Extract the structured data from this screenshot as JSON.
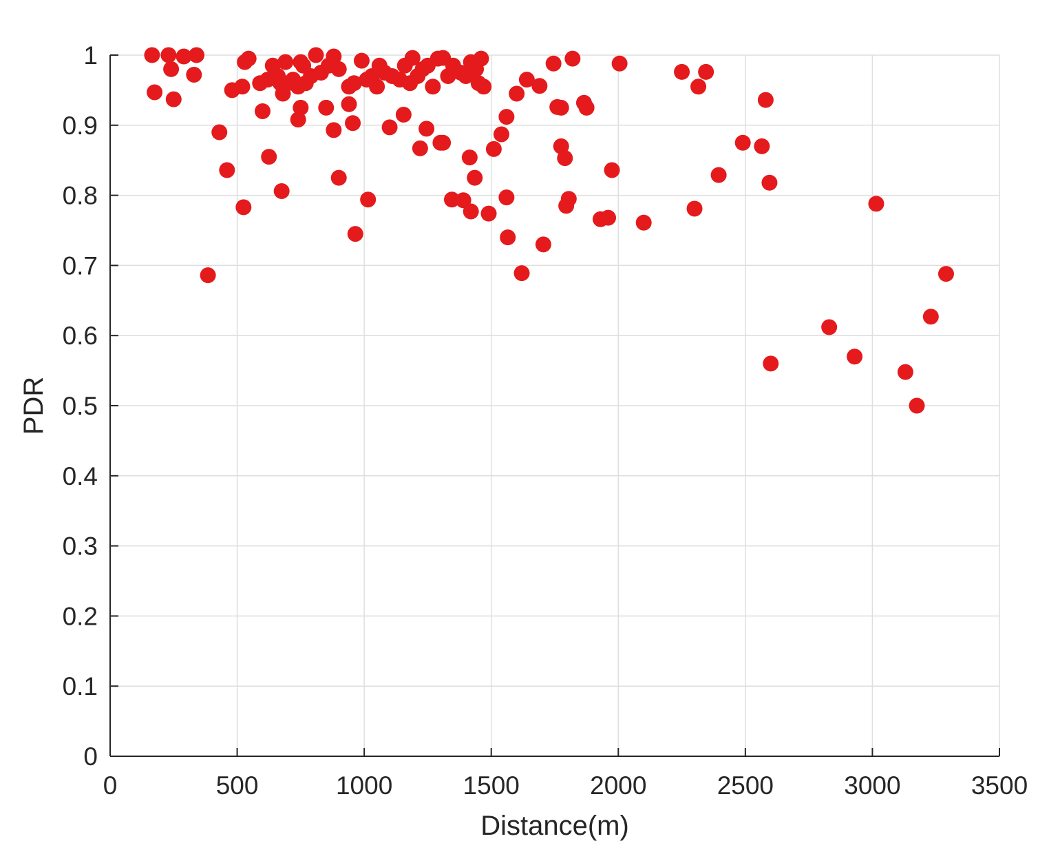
{
  "chart_data": {
    "type": "scatter",
    "title": "",
    "xlabel": "Distance(m)",
    "ylabel": "PDR",
    "xlim": [
      0,
      3500
    ],
    "ylim": [
      0,
      1
    ],
    "xticks": [
      0,
      500,
      1000,
      1500,
      2000,
      2500,
      3000,
      3500
    ],
    "xtick_labels": [
      "0",
      "500",
      "1000",
      "1500",
      "2000",
      "2500",
      "3000",
      "3500"
    ],
    "yticks": [
      0,
      0.1,
      0.2,
      0.3,
      0.4,
      0.5,
      0.6,
      0.7,
      0.8,
      0.9,
      1
    ],
    "ytick_labels": [
      "0",
      "0.1",
      "0.2",
      "0.3",
      "0.4",
      "0.5",
      "0.6",
      "0.7",
      "0.8",
      "0.9",
      "1"
    ],
    "grid": true,
    "legend": false,
    "marker_color": "#e41a1c",
    "points": [
      [
        165,
        1.0
      ],
      [
        230,
        1.0
      ],
      [
        290,
        0.998
      ],
      [
        340,
        1.0
      ],
      [
        240,
        0.98
      ],
      [
        330,
        0.972
      ],
      [
        175,
        0.947
      ],
      [
        250,
        0.937
      ],
      [
        480,
        0.95
      ],
      [
        520,
        0.955
      ],
      [
        530,
        0.99
      ],
      [
        545,
        0.995
      ],
      [
        590,
        0.96
      ],
      [
        600,
        0.92
      ],
      [
        620,
        0.965
      ],
      [
        640,
        0.985
      ],
      [
        660,
        0.97
      ],
      [
        670,
        0.96
      ],
      [
        680,
        0.945
      ],
      [
        690,
        0.99
      ],
      [
        700,
        0.96
      ],
      [
        720,
        0.965
      ],
      [
        740,
        0.955
      ],
      [
        750,
        0.99
      ],
      [
        760,
        0.985
      ],
      [
        770,
        0.96
      ],
      [
        790,
        0.97
      ],
      [
        810,
        1.0
      ],
      [
        830,
        0.975
      ],
      [
        860,
        0.985
      ],
      [
        880,
        0.998
      ],
      [
        900,
        0.98
      ],
      [
        940,
        0.955
      ],
      [
        960,
        0.96
      ],
      [
        990,
        0.992
      ],
      [
        1010,
        0.965
      ],
      [
        1030,
        0.97
      ],
      [
        1050,
        0.955
      ],
      [
        1060,
        0.985
      ],
      [
        1080,
        0.975
      ],
      [
        1110,
        0.97
      ],
      [
        1140,
        0.965
      ],
      [
        1160,
        0.985
      ],
      [
        1180,
        0.96
      ],
      [
        1190,
        0.996
      ],
      [
        1210,
        0.97
      ],
      [
        1230,
        0.98
      ],
      [
        1250,
        0.985
      ],
      [
        1270,
        0.955
      ],
      [
        1290,
        0.995
      ],
      [
        1310,
        0.996
      ],
      [
        1330,
        0.97
      ],
      [
        1350,
        0.985
      ],
      [
        1380,
        0.975
      ],
      [
        1400,
        0.97
      ],
      [
        1420,
        0.99
      ],
      [
        1440,
        0.98
      ],
      [
        1450,
        0.96
      ],
      [
        1460,
        0.995
      ],
      [
        1470,
        0.955
      ],
      [
        430,
        0.89
      ],
      [
        460,
        0.836
      ],
      [
        525,
        0.783
      ],
      [
        625,
        0.855
      ],
      [
        675,
        0.806
      ],
      [
        385,
        0.686
      ],
      [
        740,
        0.908
      ],
      [
        750,
        0.925
      ],
      [
        850,
        0.925
      ],
      [
        880,
        0.893
      ],
      [
        900,
        0.825
      ],
      [
        940,
        0.93
      ],
      [
        955,
        0.903
      ],
      [
        965,
        0.745
      ],
      [
        1015,
        0.794
      ],
      [
        1100,
        0.897
      ],
      [
        1155,
        0.915
      ],
      [
        1220,
        0.867
      ],
      [
        1245,
        0.895
      ],
      [
        1300,
        0.875
      ],
      [
        1310,
        0.875
      ],
      [
        1345,
        0.794
      ],
      [
        1390,
        0.793
      ],
      [
        1415,
        0.854
      ],
      [
        1420,
        0.777
      ],
      [
        1435,
        0.825
      ],
      [
        1490,
        0.774
      ],
      [
        1510,
        0.866
      ],
      [
        1540,
        0.887
      ],
      [
        1560,
        0.912
      ],
      [
        1560,
        0.797
      ],
      [
        1565,
        0.74
      ],
      [
        1600,
        0.945
      ],
      [
        1620,
        0.689
      ],
      [
        1640,
        0.965
      ],
      [
        1690,
        0.956
      ],
      [
        1705,
        0.73
      ],
      [
        1745,
        0.988
      ],
      [
        1760,
        0.926
      ],
      [
        1775,
        0.925
      ],
      [
        1775,
        0.87
      ],
      [
        1790,
        0.853
      ],
      [
        1795,
        0.785
      ],
      [
        1805,
        0.795
      ],
      [
        1820,
        0.995
      ],
      [
        1865,
        0.932
      ],
      [
        1875,
        0.925
      ],
      [
        1930,
        0.766
      ],
      [
        1960,
        0.768
      ],
      [
        1975,
        0.836
      ],
      [
        2005,
        0.988
      ],
      [
        2100,
        0.761
      ],
      [
        2250,
        0.976
      ],
      [
        2300,
        0.781
      ],
      [
        2315,
        0.955
      ],
      [
        2345,
        0.976
      ],
      [
        2395,
        0.829
      ],
      [
        2490,
        0.875
      ],
      [
        2565,
        0.87
      ],
      [
        2580,
        0.936
      ],
      [
        2595,
        0.818
      ],
      [
        2600,
        0.56
      ],
      [
        2830,
        0.612
      ],
      [
        2930,
        0.57
      ],
      [
        3015,
        0.788
      ],
      [
        3130,
        0.548
      ],
      [
        3175,
        0.5
      ],
      [
        3230,
        0.627
      ],
      [
        3290,
        0.688
      ]
    ]
  }
}
